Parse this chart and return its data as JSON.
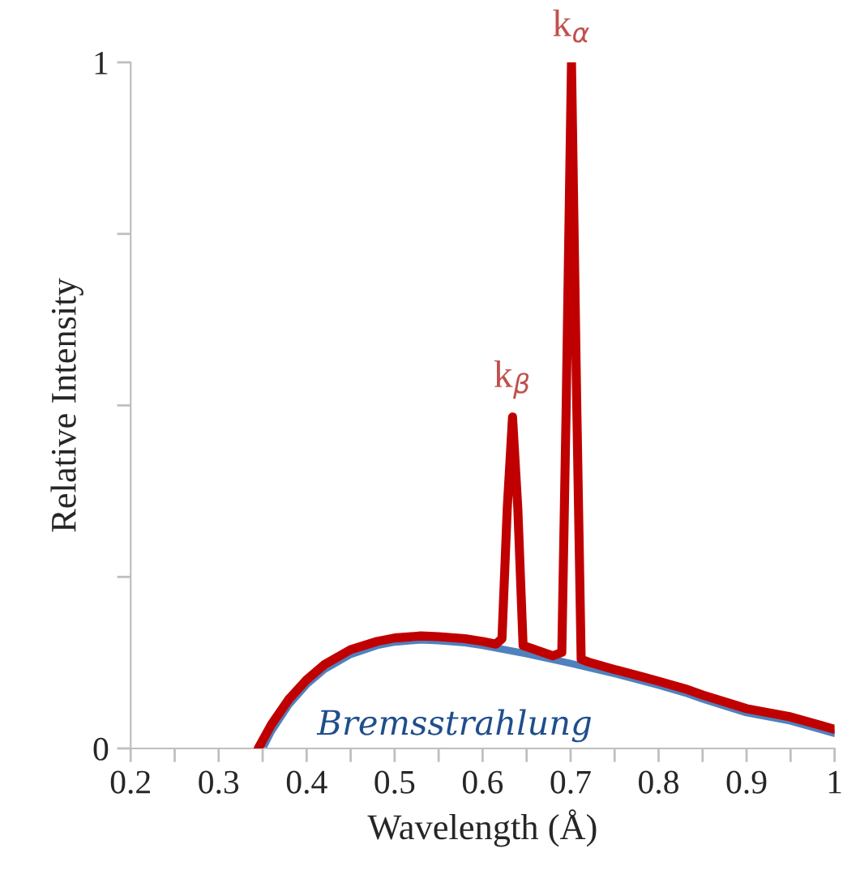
{
  "chart_data": {
    "type": "line",
    "xlabel": "Wavelength (Å)",
    "ylabel": "Relative Intensity",
    "xlim": [
      0.2,
      1
    ],
    "ylim": [
      0,
      1
    ],
    "xticks": [
      0.2,
      {
        "value": 0.25,
        "label": null
      },
      0.3,
      {
        "value": 0.35,
        "label": null
      },
      0.4,
      {
        "value": 0.45,
        "label": null
      },
      0.5,
      {
        "value": 0.55,
        "label": null
      },
      0.6,
      {
        "value": 0.65,
        "label": null
      },
      0.7,
      {
        "value": 0.75,
        "label": null
      },
      0.8,
      {
        "value": 0.85,
        "label": null
      },
      0.9,
      {
        "value": 0.95,
        "label": null
      },
      1
    ],
    "yticks": [
      0,
      {
        "value": 0.25,
        "label": null
      },
      {
        "value": 0.5,
        "label": null
      },
      {
        "value": 0.75,
        "label": null
      },
      1
    ],
    "grid": false,
    "legend": false,
    "marker": "none",
    "line_style": "solid",
    "annotations": [
      {
        "text": "k$_{β}$",
        "x": 0.634,
        "y": 0.483
      },
      {
        "text": "k$_{α}$",
        "x": 0.701,
        "y": 1.0
      }
    ],
    "series": [
      {
        "color": "#c00000",
        "x": [
          0.345,
          0.36,
          0.38,
          0.4,
          0.42,
          0.45,
          0.48,
          0.5,
          0.53,
          0.55,
          0.58,
          0.6,
          0.615,
          0.622,
          0.628,
          0.634,
          0.64,
          0.646,
          0.655,
          0.68,
          0.69,
          0.695,
          0.701,
          0.707,
          0.712,
          0.72,
          0.75,
          0.78,
          0.8,
          0.83,
          0.85,
          0.88,
          0.9,
          0.95,
          1.0
        ],
        "values": [
          0,
          0.035,
          0.072,
          0.1,
          0.122,
          0.144,
          0.156,
          0.161,
          0.164,
          0.163,
          0.16,
          0.156,
          0.152,
          0.16,
          0.35,
          0.483,
          0.35,
          0.15,
          0.146,
          0.135,
          0.14,
          0.5,
          1.0,
          0.5,
          0.13,
          0.126,
          0.115,
          0.105,
          0.098,
          0.087,
          0.078,
          0.066,
          0.058,
          0.046,
          0.028
        ]
      },
      {
        "name": "Bremsstrahlung",
        "color": "#4f81bd",
        "x": [
          0.35,
          0.36,
          0.38,
          0.4,
          0.42,
          0.45,
          0.48,
          0.5,
          0.53,
          0.55,
          0.58,
          0.6,
          0.65,
          0.7,
          0.75,
          0.78,
          0.8,
          0.83,
          0.85,
          0.88,
          0.9,
          0.95,
          1.0
        ],
        "values": [
          0,
          0.025,
          0.064,
          0.093,
          0.115,
          0.137,
          0.15,
          0.155,
          0.158,
          0.157,
          0.154,
          0.15,
          0.138,
          0.124,
          0.109,
          0.099,
          0.092,
          0.081,
          0.072,
          0.06,
          0.052,
          0.04,
          0.022
        ]
      }
    ]
  }
}
